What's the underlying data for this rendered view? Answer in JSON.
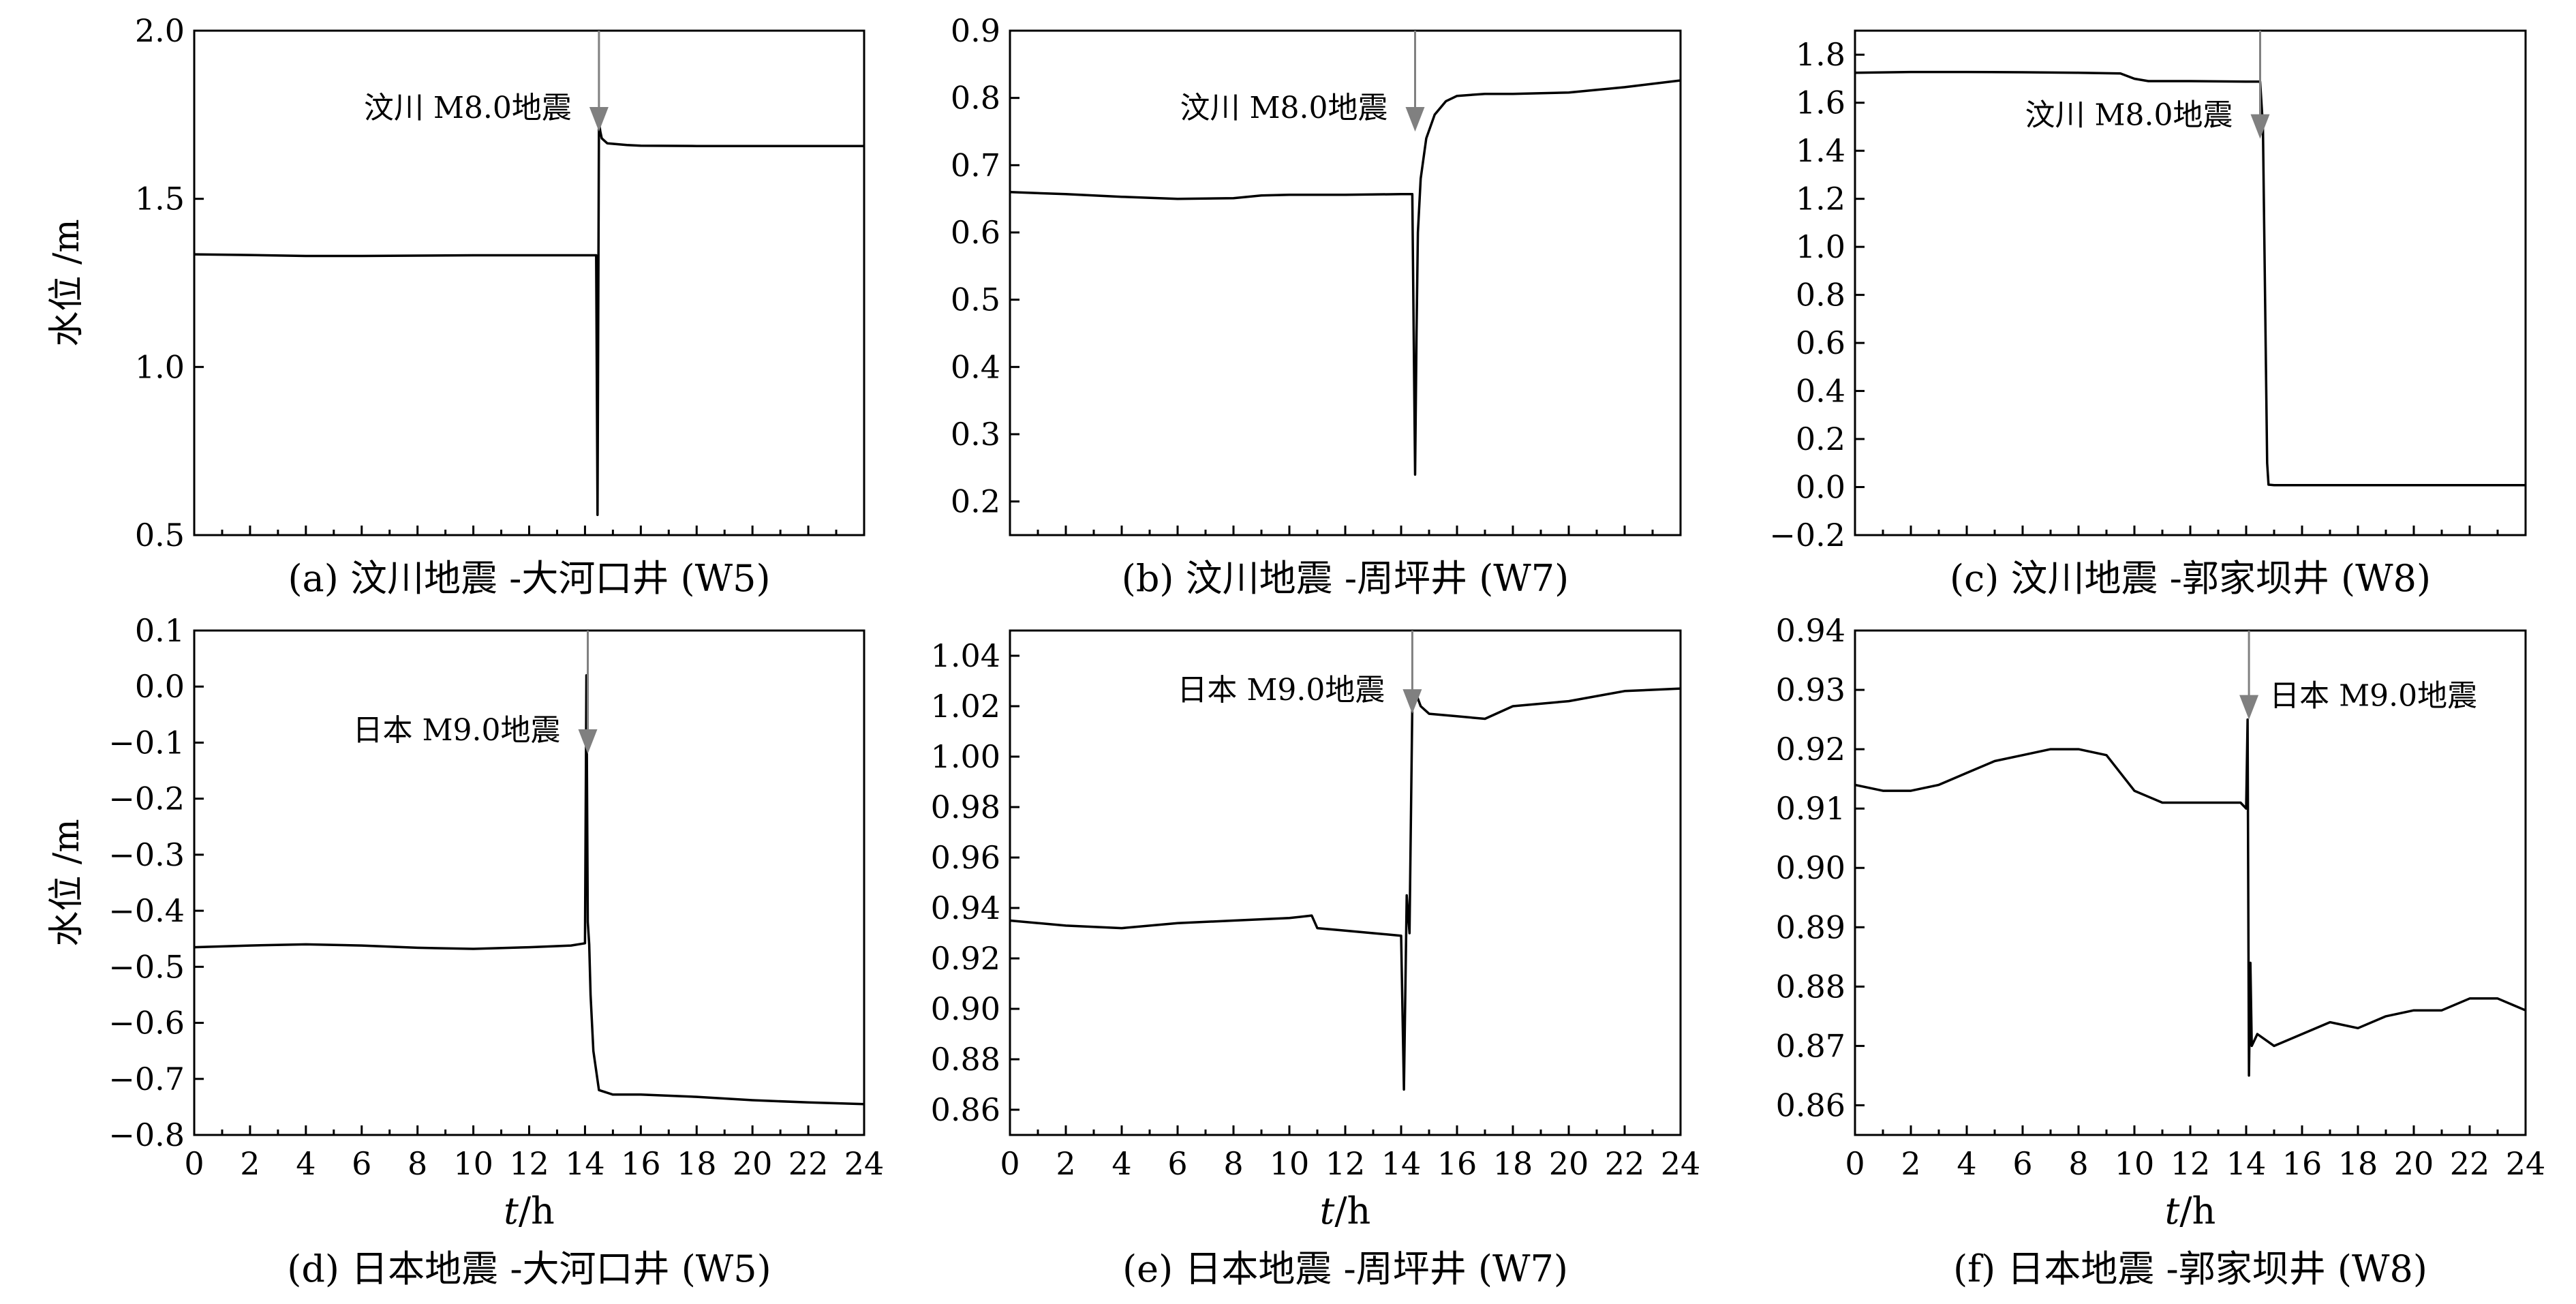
{
  "chart_data": [
    {
      "id": "a",
      "type": "line",
      "caption": "(a) 汶川地震 -大河口井 (W5)",
      "ylabel": "水位 /m",
      "ylim": [
        0.5,
        2.0
      ],
      "yticks": [
        "0.5",
        "1.0",
        "1.5",
        "2.0"
      ],
      "xlim": [
        0,
        24
      ],
      "xticks": [],
      "annotation": {
        "text": "汶川 M8.0地震",
        "x": 14.5,
        "y_tip": 1.7,
        "side": "left"
      },
      "series": [
        {
          "x": [
            0,
            2,
            4,
            6,
            8,
            10,
            12,
            14,
            14.4,
            14.45,
            14.5,
            14.55,
            14.6,
            14.8,
            15.5,
            16,
            18,
            20,
            22,
            24
          ],
          "y": [
            1.335,
            1.333,
            1.33,
            1.33,
            1.331,
            1.332,
            1.332,
            1.332,
            1.332,
            0.56,
            1.73,
            1.7,
            1.68,
            1.665,
            1.66,
            1.658,
            1.657,
            1.657,
            1.657,
            1.657
          ]
        }
      ]
    },
    {
      "id": "b",
      "type": "line",
      "caption": "(b) 汶川地震 -周坪井 (W7)",
      "ylabel": "",
      "ylim": [
        0.15,
        0.9
      ],
      "yticks": [
        "0.2",
        "0.3",
        "0.4",
        "0.5",
        "0.6",
        "0.7",
        "0.8",
        "0.9"
      ],
      "xlim": [
        0,
        24
      ],
      "xticks": [],
      "annotation": {
        "text": "汶川 M8.0地震",
        "x": 14.5,
        "y_tip": 0.75,
        "side": "left"
      },
      "series": [
        {
          "x": [
            0,
            2,
            4,
            6,
            8,
            9,
            10,
            12,
            14,
            14.4,
            14.5,
            14.55,
            14.6,
            14.7,
            14.9,
            15.2,
            15.6,
            16,
            17,
            18,
            20,
            22,
            24
          ],
          "y": [
            0.66,
            0.657,
            0.653,
            0.65,
            0.651,
            0.655,
            0.656,
            0.656,
            0.657,
            0.657,
            0.24,
            0.45,
            0.6,
            0.68,
            0.74,
            0.775,
            0.795,
            0.803,
            0.806,
            0.806,
            0.808,
            0.816,
            0.826
          ]
        }
      ]
    },
    {
      "id": "c",
      "type": "line",
      "caption": "(c) 汶川地震 -郭家坝井 (W8)",
      "ylabel": "",
      "ylim": [
        -0.2,
        1.9
      ],
      "yticks": [
        "−0.2",
        "0.0",
        "0.2",
        "0.4",
        "0.6",
        "0.8",
        "1.0",
        "1.2",
        "1.4",
        "1.6",
        "1.8"
      ],
      "xlim": [
        0,
        24
      ],
      "xticks": [],
      "annotation": {
        "text": "汶川 M8.0地震",
        "x": 14.5,
        "y_tip": 1.45,
        "side": "left"
      },
      "series": [
        {
          "x": [
            0,
            2,
            4,
            6,
            8,
            9.5,
            10,
            10.5,
            12,
            14,
            14.5,
            14.6,
            14.75,
            14.8,
            15,
            18,
            21,
            24
          ],
          "y": [
            1.725,
            1.728,
            1.728,
            1.727,
            1.725,
            1.722,
            1.7,
            1.69,
            1.69,
            1.688,
            1.688,
            1.5,
            0.1,
            0.01,
            0.008,
            0.008,
            0.008,
            0.008
          ]
        }
      ]
    },
    {
      "id": "d",
      "type": "line",
      "caption": "(d) 日本地震 -大河口井 (W5)",
      "ylabel": "水位 /m",
      "xlabel": "t/h",
      "ylim": [
        -0.8,
        0.1
      ],
      "yticks": [
        "−0.8",
        "−0.7",
        "−0.6",
        "−0.5",
        "−0.4",
        "−0.3",
        "−0.2",
        "−0.1",
        "0.0",
        "0.1"
      ],
      "xlim": [
        0,
        24
      ],
      "xticks": [
        "0",
        "2",
        "4",
        "6",
        "8",
        "10",
        "12",
        "14",
        "16",
        "18",
        "20",
        "22",
        "24"
      ],
      "annotation": {
        "text": "日本 M9.0地震",
        "x": 14.1,
        "y_tip": -0.12,
        "side": "left"
      },
      "series": [
        {
          "x": [
            0,
            2,
            4,
            6,
            8,
            10,
            12,
            13.5,
            14,
            14.05,
            14.1,
            14.15,
            14.2,
            14.3,
            14.5,
            15,
            16,
            18,
            20,
            22,
            24
          ],
          "y": [
            -0.465,
            -0.462,
            -0.46,
            -0.462,
            -0.466,
            -0.468,
            -0.465,
            -0.462,
            -0.458,
            0.02,
            -0.42,
            -0.46,
            -0.55,
            -0.65,
            -0.72,
            -0.728,
            -0.728,
            -0.732,
            -0.738,
            -0.742,
            -0.745
          ]
        }
      ]
    },
    {
      "id": "e",
      "type": "line",
      "caption": "(e) 日本地震 -周坪井 (W7)",
      "ylabel": "",
      "xlabel": "t/h",
      "ylim": [
        0.85,
        1.05
      ],
      "yticks": [
        "0.86",
        "0.88",
        "0.90",
        "0.92",
        "0.94",
        "0.96",
        "0.98",
        "1.00",
        "1.02",
        "1.04"
      ],
      "xlim": [
        0,
        24
      ],
      "xticks": [
        "0",
        "2",
        "4",
        "6",
        "8",
        "10",
        "12",
        "14",
        "16",
        "18",
        "20",
        "22",
        "24"
      ],
      "annotation": {
        "text": "日本 M9.0地震",
        "x": 14.4,
        "y_tip": 1.017,
        "side": "left"
      },
      "series": [
        {
          "x": [
            0,
            2,
            4,
            6,
            8,
            10,
            10.8,
            11,
            12,
            13,
            14,
            14.1,
            14.2,
            14.3,
            14.4,
            14.5,
            14.7,
            15,
            16,
            17,
            18,
            20,
            22,
            24
          ],
          "y": [
            0.935,
            0.933,
            0.932,
            0.934,
            0.935,
            0.936,
            0.937,
            0.932,
            0.931,
            0.93,
            0.929,
            0.868,
            0.945,
            0.93,
            1.02,
            1.026,
            1.02,
            1.017,
            1.016,
            1.015,
            1.02,
            1.022,
            1.026,
            1.027
          ]
        }
      ]
    },
    {
      "id": "f",
      "type": "line",
      "caption": "(f) 日本地震 -郭家坝井 (W8)",
      "ylabel": "",
      "xlabel": "t/h",
      "ylim": [
        0.855,
        0.94
      ],
      "yticks": [
        "0.86",
        "0.87",
        "0.88",
        "0.89",
        "0.90",
        "0.91",
        "0.92",
        "0.93",
        "0.94"
      ],
      "xlim": [
        0,
        24
      ],
      "xticks": [
        "0",
        "2",
        "4",
        "6",
        "8",
        "10",
        "12",
        "14",
        "16",
        "18",
        "20",
        "22",
        "24"
      ],
      "annotation": {
        "text": "日本 M9.0地震",
        "x": 14.1,
        "y_tip": 0.925,
        "side": "right"
      },
      "series": [
        {
          "x": [
            0,
            1,
            2,
            3,
            4,
            5,
            6,
            7,
            8,
            9,
            9.5,
            10,
            10.5,
            11,
            12,
            13,
            13.8,
            14,
            14.05,
            14.1,
            14.15,
            14.2,
            14.4,
            15,
            16,
            17,
            18,
            19,
            20,
            21,
            22,
            23,
            24
          ],
          "y": [
            0.914,
            0.913,
            0.913,
            0.914,
            0.916,
            0.918,
            0.919,
            0.92,
            0.92,
            0.919,
            0.916,
            0.913,
            0.912,
            0.911,
            0.911,
            0.911,
            0.911,
            0.91,
            0.925,
            0.865,
            0.884,
            0.87,
            0.872,
            0.87,
            0.872,
            0.874,
            0.873,
            0.875,
            0.876,
            0.876,
            0.878,
            0.878,
            0.876
          ]
        }
      ]
    }
  ]
}
